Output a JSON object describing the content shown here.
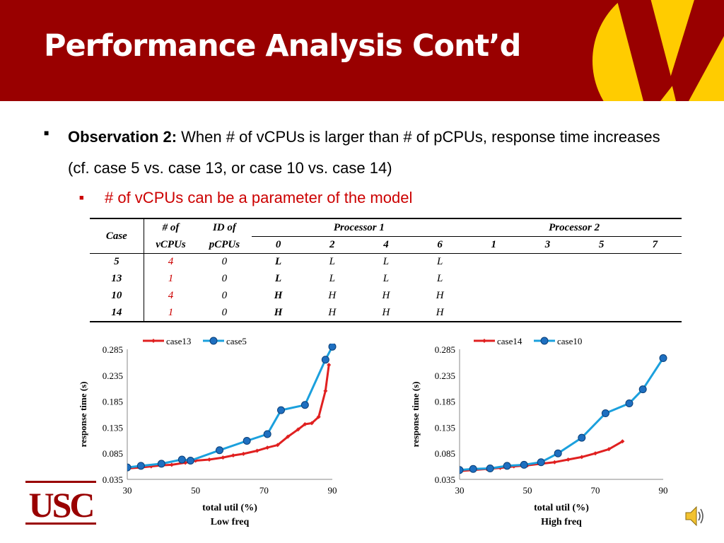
{
  "slide": {
    "title": "Performance Analysis Cont’d",
    "observation": {
      "label": "Observation 2:",
      "text": "When # of vCPUs is larger than # of pCPUs, response time increases (cf. case 5 vs. case 13, or case 10 vs. case 14)"
    },
    "sub_bullet": "# of vCPUs can be a parameter of the model",
    "colors": {
      "header": "#990000",
      "logo_gold": "#ffcc00",
      "red": "#e02020",
      "blue": "#1ba0dd",
      "marker_blue": "#1e6fc0"
    }
  },
  "table": {
    "headers": {
      "case": "Case",
      "vcpus_1": "# of",
      "vcpus_2": "vCPUs",
      "pcpu_1": "ID of",
      "pcpu_2": "pCPUs",
      "processor1": "Processor 1",
      "processor2": "Processor 2",
      "p1_cols": [
        "0",
        "2",
        "4",
        "6"
      ],
      "p2_cols": [
        "1",
        "3",
        "5",
        "7"
      ]
    },
    "rows": [
      {
        "case": "5",
        "vcpus": "4",
        "pcpus": "0",
        "p1": [
          "L",
          "L",
          "L",
          "L"
        ]
      },
      {
        "case": "13",
        "vcpus": "1",
        "pcpus": "0",
        "p1": [
          "L",
          "L",
          "L",
          "L"
        ]
      },
      {
        "case": "10",
        "vcpus": "4",
        "pcpus": "0",
        "p1": [
          "H",
          "H",
          "H",
          "H"
        ]
      },
      {
        "case": "14",
        "vcpus": "1",
        "pcpus": "0",
        "p1": [
          "H",
          "H",
          "H",
          "H"
        ]
      }
    ]
  },
  "chart_data": [
    {
      "type": "line",
      "ylabel": "response time (s)",
      "xlabel": "total util (%)",
      "caption": "Low freq",
      "xlim": [
        30,
        90
      ],
      "ylim": [
        0.035,
        0.285
      ],
      "x_ticks": [
        "30",
        "50",
        "70",
        "90"
      ],
      "y_ticks": [
        "0.035",
        "0.085",
        "0.135",
        "0.185",
        "0.235",
        "0.285"
      ],
      "legend_position": "top",
      "series": [
        {
          "name": "case13",
          "color": "#e02020",
          "marker": "diamond",
          "x": [
            30,
            34,
            37,
            40,
            43,
            47,
            50,
            54,
            58,
            61,
            64,
            68,
            71,
            74,
            77,
            80,
            82,
            84,
            86,
            88,
            89
          ],
          "y": [
            0.056,
            0.058,
            0.06,
            0.062,
            0.063,
            0.067,
            0.071,
            0.073,
            0.077,
            0.081,
            0.084,
            0.09,
            0.096,
            0.101,
            0.117,
            0.131,
            0.141,
            0.143,
            0.155,
            0.205,
            0.255
          ]
        },
        {
          "name": "case5",
          "color": "#1ba0dd",
          "marker": "circle",
          "x": [
            30,
            34,
            40,
            46,
            48.5,
            57,
            65,
            71,
            75,
            82,
            88,
            90
          ],
          "y": [
            0.058,
            0.061,
            0.065,
            0.073,
            0.071,
            0.091,
            0.109,
            0.122,
            0.168,
            0.178,
            0.265,
            0.29
          ]
        }
      ]
    },
    {
      "type": "line",
      "ylabel": "response time (s)",
      "xlabel": "total util (%)",
      "caption": "High freq",
      "xlim": [
        30,
        90
      ],
      "ylim": [
        0.035,
        0.285
      ],
      "x_ticks": [
        "30",
        "50",
        "70",
        "90"
      ],
      "y_ticks": [
        "0.035",
        "0.085",
        "0.135",
        "0.185",
        "0.235",
        "0.285"
      ],
      "legend_position": "top",
      "series": [
        {
          "name": "case14",
          "color": "#e02020",
          "marker": "diamond",
          "x": [
            30,
            34,
            38,
            42,
            46,
            50,
            54,
            58,
            62,
            66,
            70,
            74,
            78
          ],
          "y": [
            0.051,
            0.053,
            0.055,
            0.057,
            0.06,
            0.062,
            0.065,
            0.068,
            0.073,
            0.078,
            0.085,
            0.093,
            0.108
          ]
        },
        {
          "name": "case10",
          "color": "#1ba0dd",
          "marker": "circle",
          "x": [
            30,
            34,
            39,
            44,
            49,
            54,
            59,
            66,
            73,
            80,
            84,
            90
          ],
          "y": [
            0.053,
            0.055,
            0.056,
            0.061,
            0.063,
            0.068,
            0.085,
            0.115,
            0.162,
            0.181,
            0.208,
            0.268
          ]
        }
      ]
    }
  ]
}
